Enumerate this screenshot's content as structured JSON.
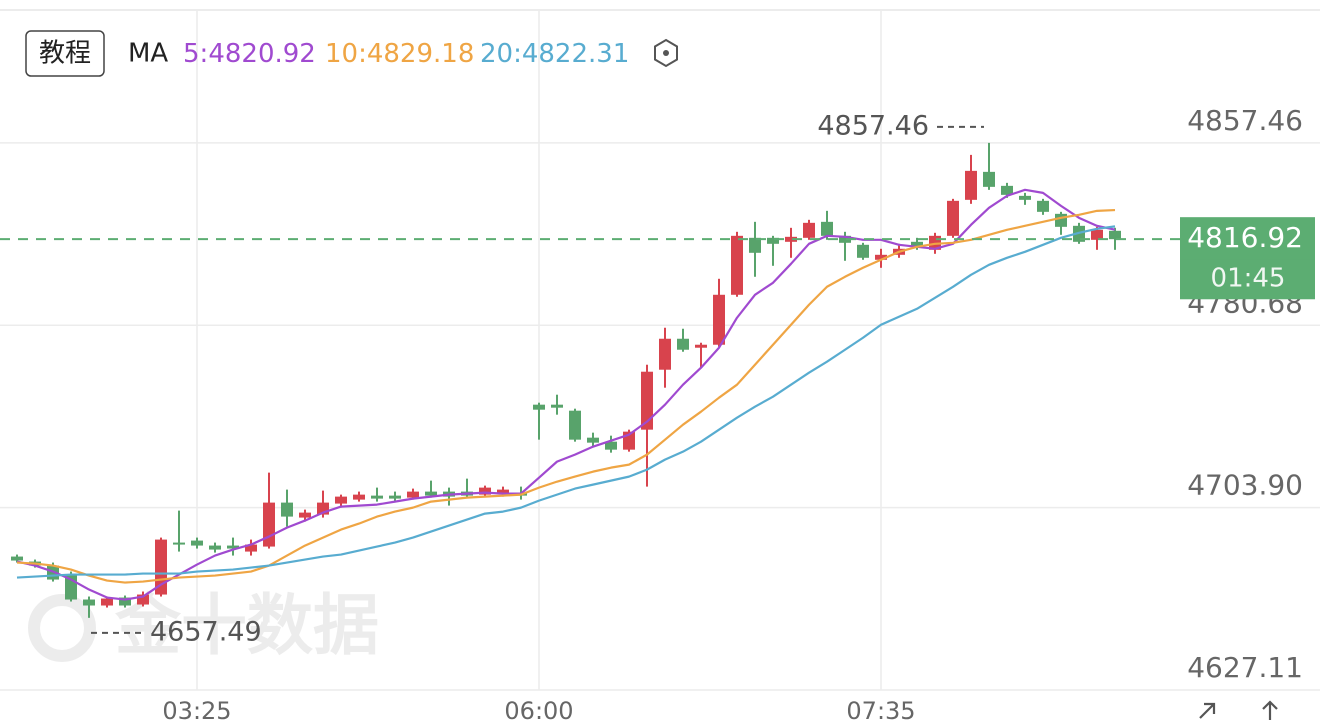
{
  "header": {
    "button": "教程",
    "indicator": "MA",
    "watermark": "金十数据"
  },
  "chart_data": {
    "type": "candlestick",
    "categories": [
      null,
      null,
      null,
      null,
      null,
      null,
      null,
      null,
      null,
      null,
      "03:25",
      null,
      null,
      null,
      null,
      null,
      null,
      null,
      null,
      null,
      null,
      null,
      null,
      null,
      null,
      null,
      null,
      null,
      null,
      "06:00",
      null,
      null,
      null,
      null,
      null,
      null,
      null,
      null,
      null,
      null,
      null,
      null,
      null,
      null,
      null,
      null,
      null,
      null,
      "07:35",
      null,
      null,
      null,
      null,
      null,
      null,
      null,
      null,
      null,
      null,
      null,
      null,
      null
    ],
    "open": [
      4683.29,
      4681.19,
      4679.5,
      4675.72,
      4665.2,
      4662.68,
      4666.04,
      4663.1,
      4667.3,
      4689.18,
      4690.02,
      4687.92,
      4687.92,
      4685.39,
      4687.5,
      4706.01,
      4699.7,
      4700.96,
      4705.59,
      4707.27,
      4708.95,
      4708.95,
      4708.11,
      4710.64,
      4710.64,
      4710.64,
      4709.37,
      4709.79,
      4710.21,
      4747.24,
      4747.24,
      4744.71,
      4733.35,
      4731.67,
      4728.3,
      4736.72,
      4761.96,
      4775.0,
      4771.22,
      4772.48,
      4793.51,
      4817.49,
      4817.49,
      4815.81,
      4817.49,
      4824.22,
      4818.33,
      4814.55,
      4808.24,
      4810.34,
      4815.81,
      4812.44,
      4818.33,
      4833.48,
      4845.26,
      4839.37,
      4835.16,
      4833.06,
      4827.59,
      4822.54,
      4816.65,
      4820.44
    ],
    "high": [
      4684.13,
      4682.03,
      4680.77,
      4676.98,
      4666.46,
      4666.46,
      4666.88,
      4668.57,
      4691.28,
      4702.64,
      4691.28,
      4689.18,
      4691.28,
      4690.44,
      4718.63,
      4711.48,
      4703.06,
      4711.06,
      4709.37,
      4710.64,
      4712.32,
      4710.64,
      4711.9,
      4715.26,
      4712.32,
      4716.1,
      4713.16,
      4712.74,
      4712.74,
      4748.08,
      4751.44,
      4745.55,
      4735.46,
      4734.19,
      4736.72,
      4764.06,
      4779.63,
      4779.21,
      4773.32,
      4800.24,
      4820.02,
      4824.22,
      4818.33,
      4821.7,
      4825.07,
      4828.85,
      4820.02,
      4815.39,
      4812.87,
      4814.97,
      4817.49,
      4819.6,
      4833.9,
      4852.41,
      4857.46,
      4840.63,
      4836.42,
      4833.9,
      4828.43,
      4823.8,
      4822.12,
      4821.7
    ],
    "low": [
      4680.77,
      4678.66,
      4672.77,
      4664.36,
      4657.49,
      4661.83,
      4661.83,
      4662.26,
      4666.46,
      4685.39,
      4686.66,
      4684.97,
      4683.71,
      4683.71,
      4686.66,
      4695.91,
      4698.01,
      4699.7,
      4703.9,
      4706.43,
      4706.43,
      4706.43,
      4707.27,
      4708.11,
      4704.75,
      4708.11,
      4708.53,
      4708.53,
      4707.27,
      4732.51,
      4743.03,
      4731.67,
      4729.57,
      4727.04,
      4727.46,
      4712.74,
      4754.39,
      4769.53,
      4762.8,
      4771.64,
      4792.67,
      4801.09,
      4805.71,
      4809.08,
      4816.65,
      4816.65,
      4807.82,
      4808.24,
      4804.87,
      4809.08,
      4812.44,
      4810.76,
      4817.49,
      4831.8,
      4837.69,
      4834.32,
      4831.38,
      4827.17,
      4818.76,
      4814.97,
      4812.44,
      4812.44
    ],
    "close": [
      4681.61,
      4679.5,
      4673.61,
      4665.2,
      4662.68,
      4665.62,
      4662.68,
      4667.3,
      4690.44,
      4688.34,
      4687.92,
      4686.23,
      4686.66,
      4688.34,
      4706.01,
      4700.12,
      4701.8,
      4706.01,
      4708.53,
      4709.37,
      4707.69,
      4707.69,
      4710.64,
      4708.95,
      4708.53,
      4708.95,
      4712.32,
      4711.48,
      4708.95,
      4745.13,
      4745.97,
      4732.51,
      4731.25,
      4728.3,
      4735.88,
      4761.12,
      4775.0,
      4770.37,
      4772.48,
      4793.51,
      4818.33,
      4811.18,
      4814.97,
      4817.91,
      4823.8,
      4818.33,
      4815.39,
      4809.08,
      4810.34,
      4812.87,
      4814.13,
      4818.33,
      4833.06,
      4845.68,
      4838.95,
      4835.58,
      4833.48,
      4828.43,
      4822.12,
      4815.81,
      4820.86,
      4816.92
    ],
    "up_color": "#d8434d",
    "down_color": "#58a36b",
    "series": [
      {
        "name": "5:",
        "color": "#a04ad0",
        "values": [
          4681.19,
          4679.5,
          4676.98,
          4673.61,
          4669.41,
          4666.04,
          4665.2,
          4666.46,
          4671.51,
          4675.72,
          4679.92,
          4683.71,
          4686.23,
          4688.34,
          4691.71,
          4695.49,
          4698.44,
          4701.8,
          4704.33,
          4704.75,
          4705.17,
          4706.43,
          4707.69,
          4708.53,
          4709.37,
          4709.79,
          4710.21,
          4709.79,
          4709.79,
          4716.52,
          4723.26,
          4726.2,
          4729.57,
          4732.09,
          4734.62,
          4740.09,
          4747.24,
          4755.65,
          4762.8,
          4771.22,
          4783.84,
          4793.51,
          4798.56,
          4806.55,
          4814.97,
          4818.33,
          4817.91,
          4816.65,
          4816.65,
          4814.55,
          4813.71,
          4812.87,
          4814.97,
          4822.96,
          4830.12,
          4835.16,
          4837.69,
          4836.42,
          4830.95,
          4825.9,
          4822.54,
          4820.92
        ]
      },
      {
        "name": "10:",
        "color": "#efa544",
        "values": [
          4680.77,
          4680.35,
          4679.5,
          4677.82,
          4675.3,
          4673.19,
          4672.35,
          4672.77,
          4673.61,
          4674.46,
          4674.88,
          4675.3,
          4676.14,
          4676.98,
          4679.5,
          4683.71,
          4687.92,
          4691.28,
          4694.65,
          4697.17,
          4700.12,
          4702.22,
          4703.9,
          4706.43,
          4707.27,
          4708.11,
          4708.53,
          4708.95,
          4709.37,
          4712.32,
          4714.84,
          4716.95,
          4719.05,
          4720.73,
          4721.99,
          4726.2,
          4732.51,
          4738.82,
          4744.29,
          4750.18,
          4755.65,
          4764.06,
          4772.48,
          4780.89,
          4789.3,
          4796.88,
          4801.09,
          4804.87,
          4808.24,
          4811.6,
          4813.71,
          4814.97,
          4815.39,
          4816.65,
          4818.76,
          4820.86,
          4822.54,
          4824.22,
          4825.9,
          4827.17,
          4828.85,
          4829.18
        ]
      },
      {
        "name": "20:",
        "color": "#58acd0",
        "values": [
          4674.46,
          4674.88,
          4675.3,
          4675.72,
          4675.72,
          4675.72,
          4675.72,
          4676.14,
          4676.14,
          4676.14,
          4676.98,
          4677.4,
          4677.82,
          4678.66,
          4679.5,
          4680.77,
          4682.03,
          4683.29,
          4684.13,
          4685.81,
          4687.5,
          4689.18,
          4691.28,
          4693.81,
          4696.33,
          4698.86,
          4701.38,
          4702.22,
          4703.9,
          4706.85,
          4709.37,
          4711.9,
          4713.58,
          4715.26,
          4716.95,
          4719.89,
          4724.1,
          4727.46,
          4731.67,
          4736.72,
          4741.77,
          4746.4,
          4750.6,
          4755.65,
          4760.7,
          4765.33,
          4770.37,
          4775.42,
          4780.89,
          4784.26,
          4787.62,
          4792.25,
          4796.88,
          4801.93,
          4806.13,
          4809.08,
          4811.6,
          4814.55,
          4817.49,
          4819.6,
          4821.28,
          4822.31
        ]
      }
    ],
    "ylim": [
      4627.11,
      4913.41
    ],
    "yticks": [
      4627.11,
      {
        "value": 4703.9,
        "label": "4703.90"
      },
      4780.68,
      4857.46
    ],
    "grid": true,
    "high_mark": 4857.46,
    "low_mark": 4657.49,
    "last_price": 4816.92,
    "last_price_color": "#5cad72",
    "countdown": "01:45"
  }
}
